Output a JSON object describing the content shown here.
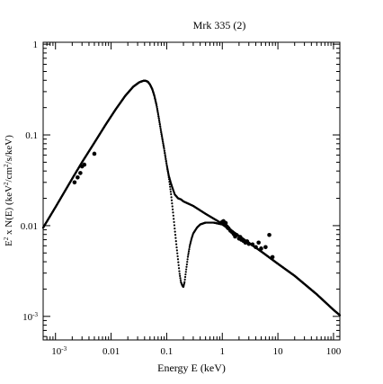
{
  "chart_data": {
    "type": "scatter",
    "title": "Mrk 335 (2)",
    "xlabel": "Energy E (keV)",
    "ylabel_parts": {
      "e": "E",
      "e_sup": "2",
      "mid": " x N(E) (keV",
      "mid_sup": "2",
      "cm": "/cm",
      "cm_sup": "2",
      "end": "/s/keV)"
    },
    "x_scale": "log",
    "y_scale": "log",
    "xlim": [
      0.0006,
      130
    ],
    "ylim": [
      0.00055,
      1.05
    ],
    "x_ticks": [
      {
        "value": 0.001,
        "base": "10",
        "exp": "-3"
      },
      {
        "value": 0.01,
        "label": "0.01"
      },
      {
        "value": 0.1,
        "label": "0.1"
      },
      {
        "value": 1,
        "label": "1"
      },
      {
        "value": 10,
        "label": "10"
      },
      {
        "value": 100,
        "label": "100"
      }
    ],
    "y_ticks": [
      {
        "value": 0.001,
        "base": "10",
        "exp": "-3"
      },
      {
        "value": 0.01,
        "label": "0.01"
      },
      {
        "value": 0.1,
        "label": "0.1"
      },
      {
        "value": 1,
        "label": "1"
      }
    ],
    "grid": false,
    "series": [
      {
        "style": "dense-points",
        "x": [
          0.0006,
          0.001,
          0.002,
          0.003,
          0.005,
          0.008,
          0.012,
          0.018,
          0.025,
          0.032,
          0.038,
          0.042,
          0.046,
          0.05,
          0.055,
          0.06,
          0.066,
          0.072,
          0.08,
          0.09,
          0.1,
          0.11,
          0.12,
          0.13,
          0.14,
          0.15,
          0.16,
          0.18,
          0.2,
          0.3,
          0.5,
          1,
          2,
          5,
          10,
          20,
          50,
          100,
          130
        ],
        "y": [
          0.0095,
          0.016,
          0.033,
          0.05,
          0.082,
          0.13,
          0.19,
          0.27,
          0.34,
          0.38,
          0.395,
          0.395,
          0.385,
          0.36,
          0.32,
          0.27,
          0.21,
          0.155,
          0.105,
          0.07,
          0.047,
          0.035,
          0.029,
          0.025,
          0.022,
          0.021,
          0.02,
          0.0195,
          0.0185,
          0.0165,
          0.0135,
          0.0105,
          0.0077,
          0.0052,
          0.0038,
          0.0028,
          0.00175,
          0.00118,
          0.00103
        ]
      },
      {
        "style": "dense-points",
        "x": [
          0.0006,
          0.001,
          0.002,
          0.003,
          0.005,
          0.008,
          0.012,
          0.018,
          0.025,
          0.032,
          0.038,
          0.042,
          0.046,
          0.05,
          0.055,
          0.06,
          0.066,
          0.072,
          0.08,
          0.09,
          0.1,
          0.11,
          0.12,
          0.13,
          0.14,
          0.15,
          0.16,
          0.17,
          0.18,
          0.19,
          0.2,
          0.21,
          0.22,
          0.24,
          0.26,
          0.28,
          0.3,
          0.35,
          0.4,
          0.5,
          0.7,
          1,
          2,
          5,
          10,
          20,
          50,
          100,
          130
        ],
        "y": [
          0.0095,
          0.016,
          0.033,
          0.05,
          0.082,
          0.13,
          0.19,
          0.27,
          0.34,
          0.38,
          0.395,
          0.395,
          0.385,
          0.36,
          0.32,
          0.27,
          0.21,
          0.155,
          0.105,
          0.07,
          0.047,
          0.033,
          0.022,
          0.014,
          0.009,
          0.006,
          0.0042,
          0.003,
          0.0024,
          0.0022,
          0.0021,
          0.0024,
          0.003,
          0.0045,
          0.006,
          0.0072,
          0.0082,
          0.0095,
          0.0103,
          0.0108,
          0.0108,
          0.0103,
          0.0077,
          0.0052,
          0.0038,
          0.0028,
          0.00175,
          0.00118,
          0.00103
        ]
      },
      {
        "style": "data-points",
        "x": [
          0.0022,
          0.0025,
          0.0028,
          0.003,
          0.0033,
          0.005,
          1.0,
          1.05,
          1.1,
          1.15,
          1.2,
          1.25,
          1.3,
          1.4,
          1.5,
          1.6,
          1.7,
          1.8,
          2.0,
          2.1,
          2.2,
          2.4,
          2.6,
          2.8,
          3.0,
          3.5,
          4.0,
          4.5,
          5.0,
          6.0,
          7.0,
          8.0
        ],
        "y": [
          0.03,
          0.034,
          0.038,
          0.045,
          0.047,
          0.062,
          0.011,
          0.0112,
          0.0103,
          0.0107,
          0.0098,
          0.0095,
          0.0093,
          0.0088,
          0.0085,
          0.0081,
          0.0076,
          0.0079,
          0.0072,
          0.0075,
          0.007,
          0.0068,
          0.0065,
          0.0067,
          0.0063,
          0.0062,
          0.0058,
          0.0065,
          0.0056,
          0.0058,
          0.0079,
          0.0045
        ]
      }
    ]
  }
}
